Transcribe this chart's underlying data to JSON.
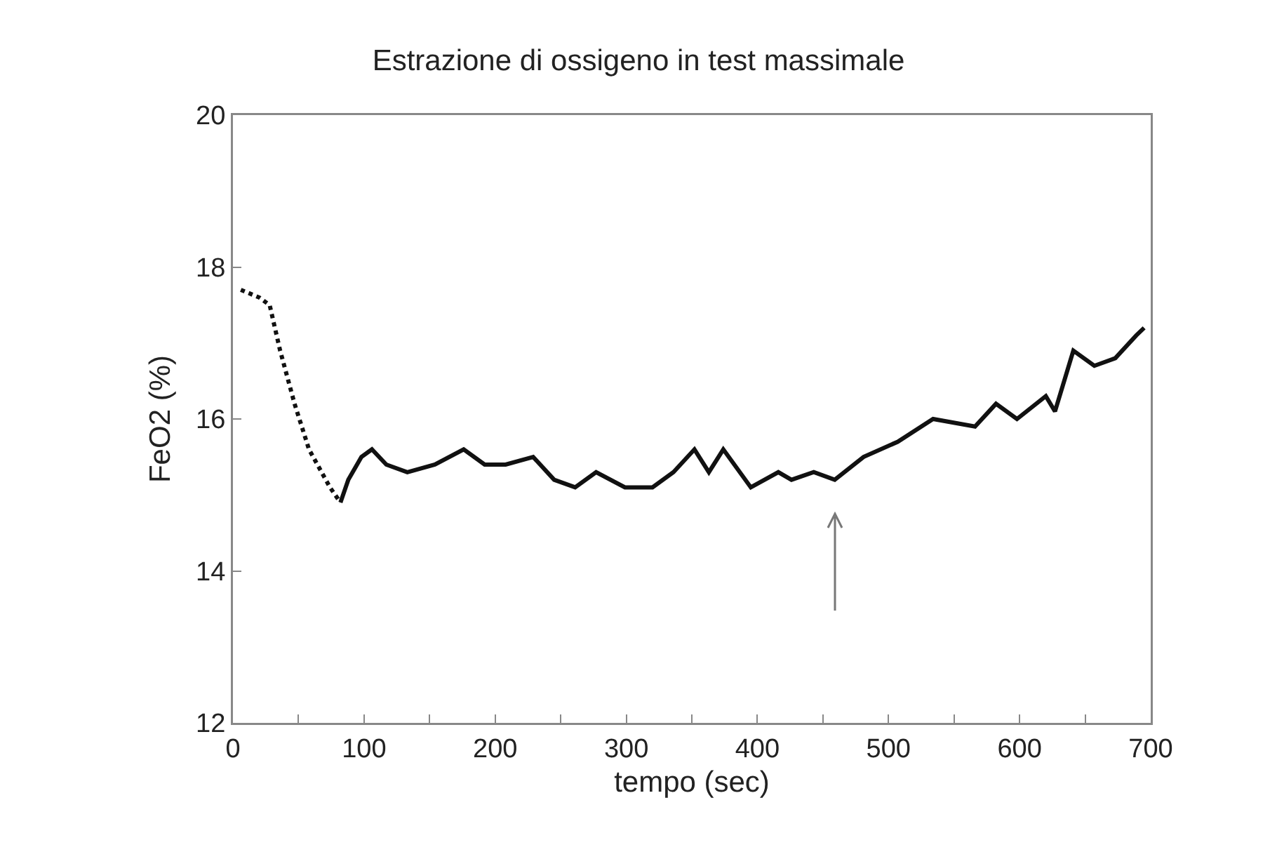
{
  "chart_data": {
    "type": "line",
    "title": "Estrazione di ossigeno in test massimale",
    "xlabel": "tempo (sec)",
    "ylabel": "FeO2 (%)",
    "xlim": [
      0,
      700
    ],
    "xticks": [
      0,
      {
        "value": 50,
        "label": null
      },
      100,
      {
        "value": 150,
        "label": null
      },
      200,
      {
        "value": 250,
        "label": null
      },
      300,
      {
        "value": 350,
        "label": null
      },
      400,
      {
        "value": 450,
        "label": null
      },
      500,
      {
        "value": 550,
        "label": null
      },
      600,
      {
        "value": 650,
        "label": null
      },
      700
    ],
    "ylim": [
      12,
      20
    ],
    "yticks": [
      12,
      14,
      16,
      18,
      20
    ],
    "grid": false,
    "marker": "none",
    "series": [
      {
        "color": "#111111",
        "line_style": "dotted",
        "x": [
          6,
          20,
          28,
          36,
          47,
          58,
          74,
          82
        ],
        "values": [
          17.7,
          17.6,
          17.5,
          16.9,
          16.2,
          15.6,
          15.1,
          14.9
        ]
      },
      {
        "color": "#111111",
        "line_style": "solid",
        "x": [
          82,
          88,
          98,
          106,
          117,
          133,
          154,
          176,
          192,
          208,
          229,
          245,
          261,
          277,
          299,
          320,
          336,
          352,
          363,
          374,
          395,
          416,
          426,
          443,
          459,
          481,
          507,
          534,
          566,
          582,
          598,
          620,
          627,
          641,
          657,
          673,
          689,
          695
        ],
        "values": [
          14.9,
          15.2,
          15.5,
          15.6,
          15.4,
          15.3,
          15.4,
          15.6,
          15.4,
          15.4,
          15.5,
          15.2,
          15.1,
          15.3,
          15.1,
          15.1,
          15.3,
          15.6,
          15.3,
          15.6,
          15.1,
          15.3,
          15.2,
          15.3,
          15.2,
          15.5,
          15.7,
          16.0,
          15.9,
          16.2,
          16.0,
          16.3,
          16.1,
          16.9,
          16.7,
          16.8,
          17.1,
          17.2
        ]
      }
    ]
  }
}
